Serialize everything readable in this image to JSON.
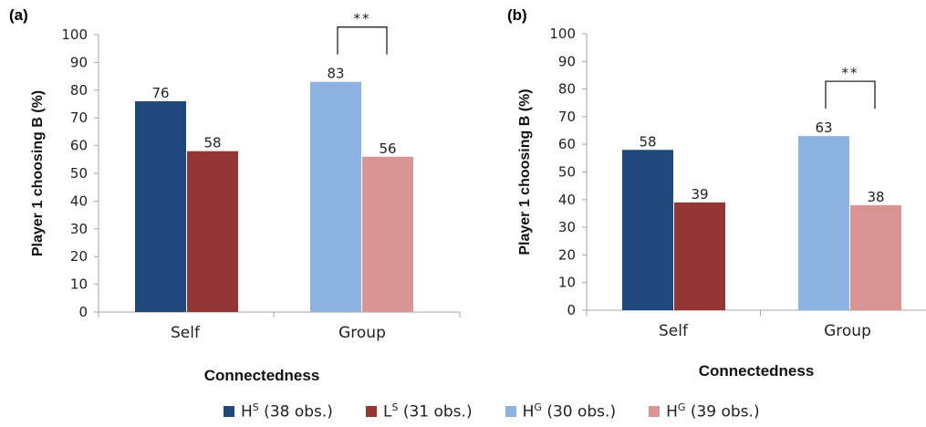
{
  "colors": {
    "HS": "#1f497d",
    "LS": "#943634",
    "HG1": "#8db3e2",
    "HG2": "#d99594",
    "axis": "#a6a6a6"
  },
  "legend": [
    {
      "base": "H",
      "sup": "S",
      "rest": " (38 obs.)",
      "color_key": "HS"
    },
    {
      "base": "L",
      "sup": "S",
      "rest": " (31 obs.)",
      "color_key": "LS"
    },
    {
      "base": "H",
      "sup": "G",
      "rest": " (30 obs.)",
      "color_key": "HG1"
    },
    {
      "base": "H",
      "sup": "G",
      "rest": " (39 obs.)",
      "color_key": "HG2"
    }
  ],
  "chart_data": [
    {
      "type": "bar",
      "panel": "(a)",
      "categories": [
        "Self",
        "Group"
      ],
      "series": [
        {
          "color_key": "HS",
          "values": [
            76,
            null
          ]
        },
        {
          "color_key": "LS",
          "values": [
            58,
            null
          ]
        },
        {
          "color_key": "HG1",
          "values": [
            null,
            83
          ]
        },
        {
          "color_key": "HG2",
          "values": [
            null,
            56
          ]
        }
      ],
      "xlabel": "Connectedness",
      "ylabel": "Player 1 choosing B (%)",
      "ylim": [
        0,
        100
      ],
      "yticks": [
        0,
        10,
        20,
        30,
        40,
        50,
        60,
        70,
        80,
        90,
        100
      ],
      "significance": {
        "category": "Group",
        "label": "**"
      },
      "grid": false
    },
    {
      "type": "bar",
      "panel": "(b)",
      "categories": [
        "Self",
        "Group"
      ],
      "series": [
        {
          "color_key": "HS",
          "values": [
            58,
            null
          ]
        },
        {
          "color_key": "LS",
          "values": [
            39,
            null
          ]
        },
        {
          "color_key": "HG1",
          "values": [
            null,
            63
          ]
        },
        {
          "color_key": "HG2",
          "values": [
            null,
            38
          ]
        }
      ],
      "xlabel": "Connectedness",
      "ylabel": "Player 1 choosing B (%)",
      "ylim": [
        0,
        100
      ],
      "yticks": [
        0,
        10,
        20,
        30,
        40,
        50,
        60,
        70,
        80,
        90,
        100
      ],
      "significance": {
        "category": "Group",
        "label": "**"
      },
      "grid": false
    }
  ]
}
